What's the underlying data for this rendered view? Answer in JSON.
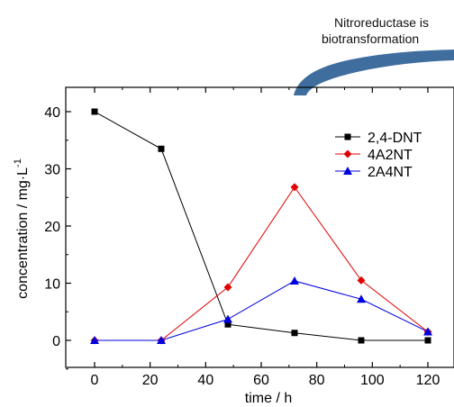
{
  "annotation": {
    "line1": "Nitroreductase is",
    "line2": "biotransformation",
    "arrow_color": "#3f6e9e"
  },
  "chart_data": {
    "type": "line",
    "title": "",
    "xlabel": "time / h",
    "ylabel_main": "concentration / mg·L",
    "ylabel_sup": "-1",
    "xlim": [
      -10,
      125
    ],
    "ylim": [
      -5,
      45
    ],
    "xticks": [
      0,
      20,
      40,
      60,
      80,
      100,
      120
    ],
    "yticks": [
      0,
      10,
      20,
      30,
      40
    ],
    "legend_position": "top-right",
    "series": [
      {
        "name": "2,4-DNT",
        "color": "#000000",
        "marker": "square",
        "x": [
          0,
          24,
          48,
          72,
          96,
          120
        ],
        "y": [
          40,
          33.5,
          2.8,
          1.3,
          0,
          0
        ]
      },
      {
        "name": "4A2NT",
        "color": "#e00000",
        "marker": "diamond",
        "x": [
          0,
          24,
          48,
          72,
          96,
          120
        ],
        "y": [
          0,
          0,
          9.3,
          26.8,
          10.5,
          1.5
        ]
      },
      {
        "name": "2A4NT",
        "color": "#0000e0",
        "marker": "triangle",
        "x": [
          0,
          24,
          48,
          72,
          96,
          120
        ],
        "y": [
          0,
          0,
          3.7,
          10.4,
          7.2,
          1.5
        ]
      }
    ]
  }
}
